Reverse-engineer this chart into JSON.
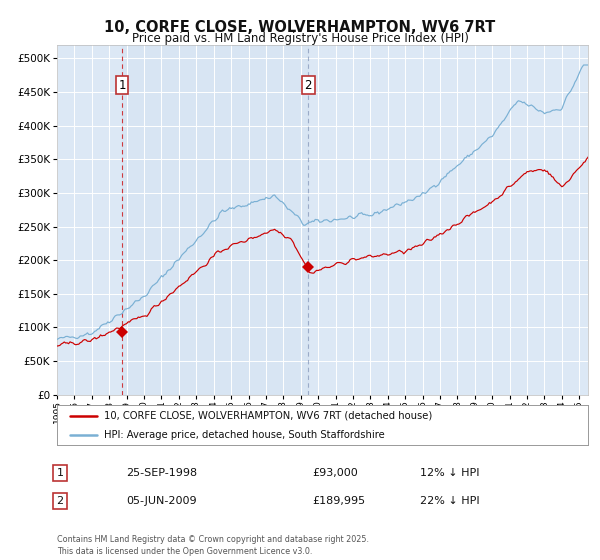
{
  "title": "10, CORFE CLOSE, WOLVERHAMPTON, WV6 7RT",
  "subtitle": "Price paid vs. HM Land Registry's House Price Index (HPI)",
  "title_fontsize": 10.5,
  "subtitle_fontsize": 8.5,
  "background_color": "#ffffff",
  "plot_bg_color": "#dce8f5",
  "grid_color": "#ffffff",
  "red_line_color": "#cc0000",
  "blue_line_color": "#7ab0d4",
  "purchase1_date_x": 1998.73,
  "purchase1_price": 93000,
  "purchase2_date_x": 2009.43,
  "purchase2_price": 189995,
  "label1": "1",
  "label2": "2",
  "legend_line1": "10, CORFE CLOSE, WOLVERHAMPTON, WV6 7RT (detached house)",
  "legend_line2": "HPI: Average price, detached house, South Staffordshire",
  "table_row1_num": "1",
  "table_row1_date": "25-SEP-1998",
  "table_row1_price": "£93,000",
  "table_row1_note": "12% ↓ HPI",
  "table_row2_num": "2",
  "table_row2_date": "05-JUN-2009",
  "table_row2_price": "£189,995",
  "table_row2_note": "22% ↓ HPI",
  "footer": "Contains HM Land Registry data © Crown copyright and database right 2025.\nThis data is licensed under the Open Government Licence v3.0.",
  "ylim_min": 0,
  "ylim_max": 520000,
  "xlim_min": 1995.0,
  "xlim_max": 2025.5
}
